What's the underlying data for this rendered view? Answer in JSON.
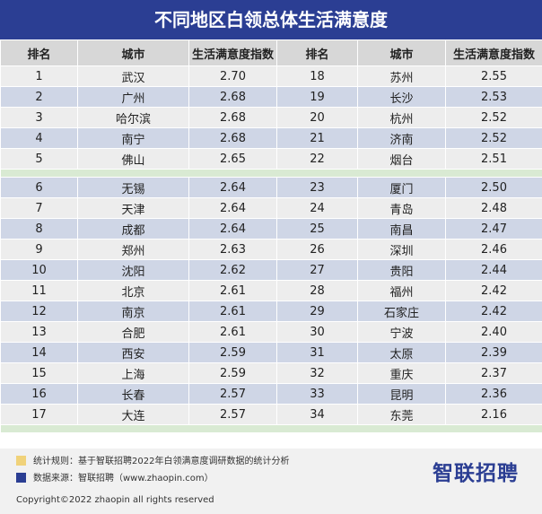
{
  "title": "不同地区白领总体生活满意度",
  "headers": [
    "排名",
    "城市",
    "生活满意度指数",
    "排名",
    "城市",
    "生活满意度指数"
  ],
  "rows": [
    {
      "left": [
        "1",
        "武汉",
        "2.70"
      ],
      "right": [
        "18",
        "苏州",
        "2.55"
      ]
    },
    {
      "left": [
        "2",
        "广州",
        "2.68"
      ],
      "right": [
        "19",
        "长沙",
        "2.53"
      ]
    },
    {
      "left": [
        "3",
        "哈尔滨",
        "2.68"
      ],
      "right": [
        "20",
        "杭州",
        "2.52"
      ]
    },
    {
      "left": [
        "4",
        "南宁",
        "2.68"
      ],
      "right": [
        "21",
        "济南",
        "2.52"
      ]
    },
    {
      "left": [
        "5",
        "佛山",
        "2.65"
      ],
      "right": [
        "22",
        "烟台",
        "2.51"
      ]
    },
    {
      "left": [
        "6",
        "无锡",
        "2.64"
      ],
      "right": [
        "23",
        "厦门",
        "2.50"
      ]
    },
    {
      "left": [
        "7",
        "天津",
        "2.64"
      ],
      "right": [
        "24",
        "青岛",
        "2.48"
      ]
    },
    {
      "left": [
        "8",
        "成都",
        "2.64"
      ],
      "right": [
        "25",
        "南昌",
        "2.47"
      ]
    },
    {
      "left": [
        "9",
        "郑州",
        "2.63"
      ],
      "right": [
        "26",
        "深圳",
        "2.46"
      ]
    },
    {
      "left": [
        "10",
        "沈阳",
        "2.62"
      ],
      "right": [
        "27",
        "贵阳",
        "2.44"
      ]
    },
    {
      "left": [
        "11",
        "北京",
        "2.61"
      ],
      "right": [
        "28",
        "福州",
        "2.42"
      ]
    },
    {
      "left": [
        "12",
        "南京",
        "2.61"
      ],
      "right": [
        "29",
        "石家庄",
        "2.42"
      ]
    },
    {
      "left": [
        "13",
        "合肥",
        "2.61"
      ],
      "right": [
        "30",
        "宁波",
        "2.40"
      ]
    },
    {
      "left": [
        "14",
        "西安",
        "2.59"
      ],
      "right": [
        "31",
        "太原",
        "2.39"
      ]
    },
    {
      "left": [
        "15",
        "上海",
        "2.59"
      ],
      "right": [
        "32",
        "重庆",
        "2.37"
      ]
    },
    {
      "left": [
        "16",
        "长春",
        "2.57"
      ],
      "right": [
        "33",
        "昆明",
        "2.36"
      ]
    },
    {
      "left": [
        "17",
        "大连",
        "2.57"
      ],
      "right": [
        "34",
        "东莞",
        "2.16"
      ]
    }
  ],
  "footer": {
    "stat_rule": "统计规则：基于智联招聘2022年白领满意度调研数据的统计分析",
    "stat_color": "#f0d27a",
    "source": "数据来源：智联招聘（www.zhaopin.com）",
    "source_color": "#2b3e93",
    "brand": "智联招聘",
    "copyright": "Copyright©2022 zhaopin all rights reserved"
  }
}
